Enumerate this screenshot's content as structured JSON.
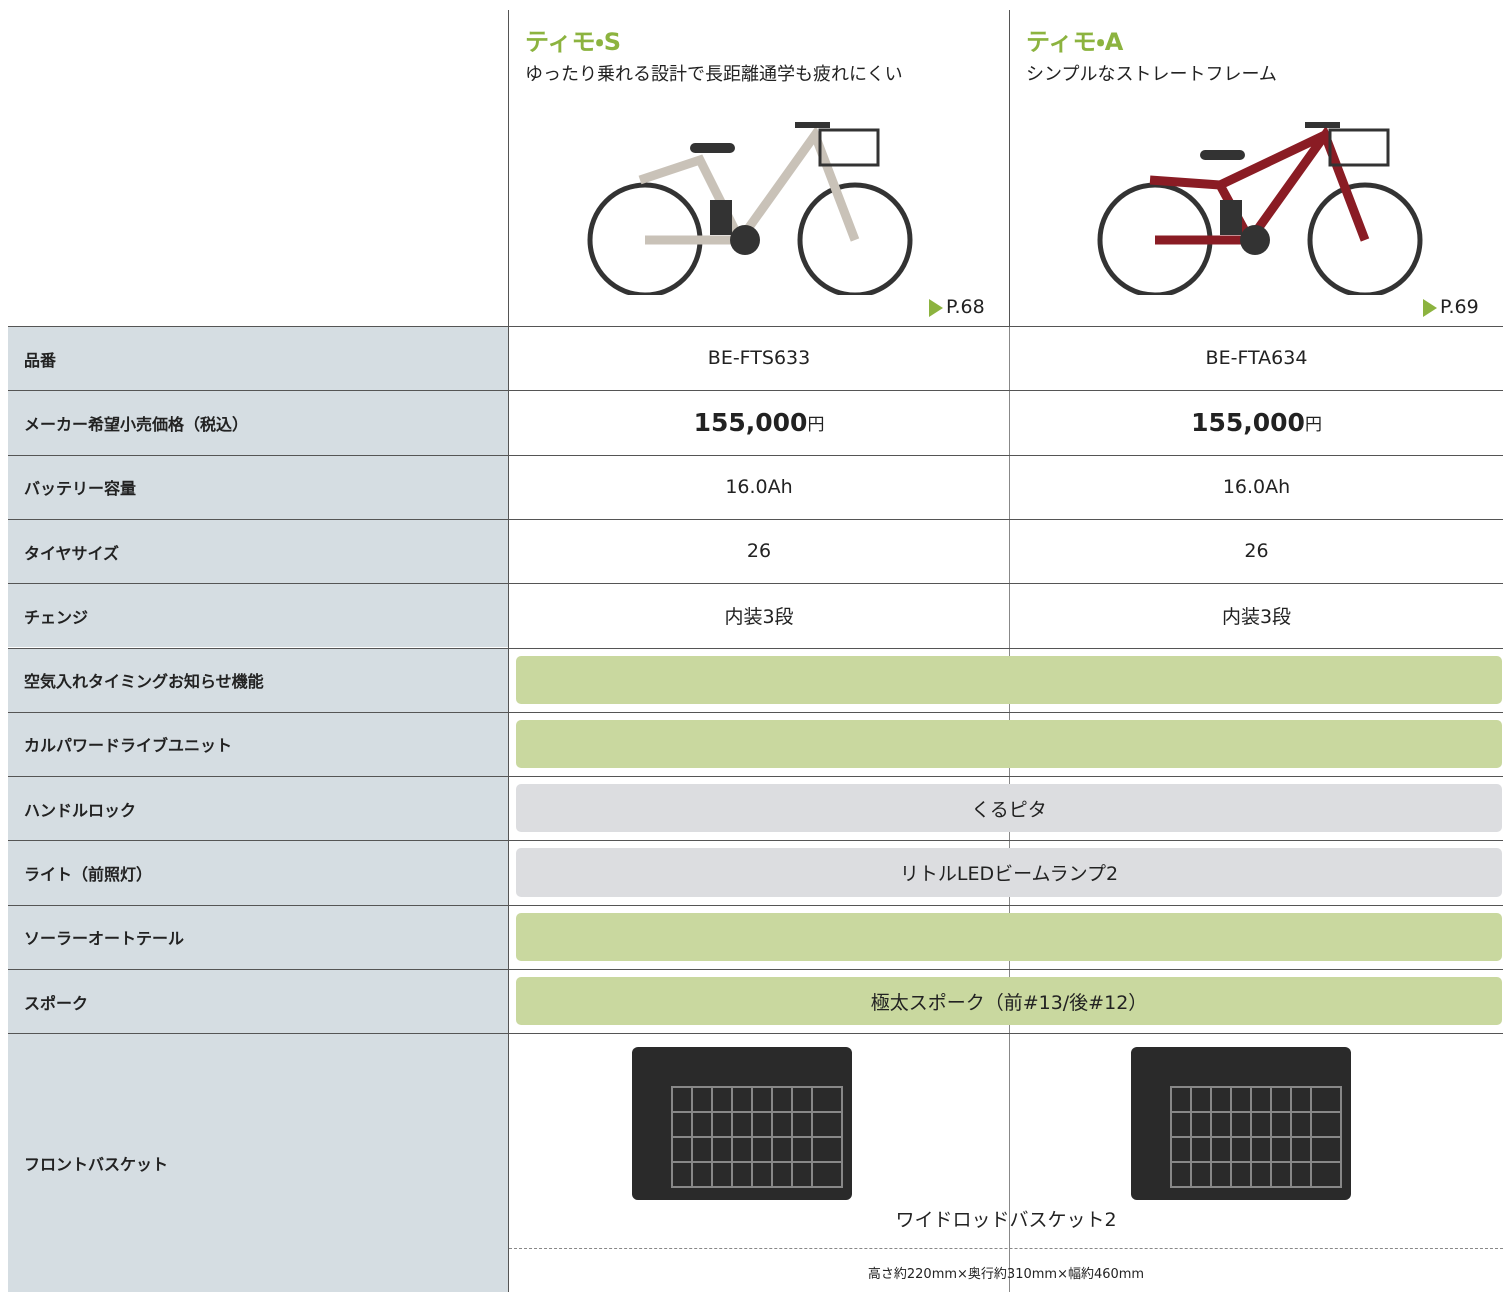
{
  "products": [
    {
      "name": "ティモ・S",
      "tagline": "ゆったり乗れる設計で長距離通学も疲れにくい",
      "page": "P.68"
    },
    {
      "name": "ティモ・A",
      "tagline": "シンプルなストレートフレーム",
      "page": "P.69"
    }
  ],
  "rows": [
    {
      "label": "品番",
      "values": [
        "BE-FTS633",
        "BE-FTA634"
      ]
    },
    {
      "label": "メーカー希望小売価格（税込）",
      "prices": [
        {
          "amount": "155,000",
          "unit": "円"
        },
        {
          "amount": "155,000",
          "unit": "円"
        }
      ]
    },
    {
      "label": "バッテリー容量",
      "values": [
        "16.0Ah",
        "16.0Ah"
      ]
    },
    {
      "label": "タイヤサイズ",
      "values": [
        "26",
        "26"
      ]
    },
    {
      "label": "チェンジ",
      "values": [
        "内装3段",
        "内装3段"
      ]
    },
    {
      "label": "空気入れタイミングお知らせ機能",
      "fill": "#c9d89f"
    },
    {
      "label": "カルパワードライブユニット",
      "fill": "#c9d89f"
    },
    {
      "label": "ハンドルロック",
      "span_text": "くるピタ",
      "fill": "#dcdde0"
    },
    {
      "label": "ライト（前照灯）",
      "span_text": "リトルLEDビームランプ2",
      "fill": "#dcdde0"
    },
    {
      "label": "ソーラーオートテール",
      "fill": "#c9d89f"
    },
    {
      "label": "スポーク",
      "span_text": "極太スポーク（前#13/後#12）",
      "fill": "#c9d89f"
    },
    {
      "label": "フロントバスケット",
      "span_text": "ワイドロッドバスケット2",
      "note": "高さ約220mm×奥行約310mm×幅約460mm"
    }
  ]
}
